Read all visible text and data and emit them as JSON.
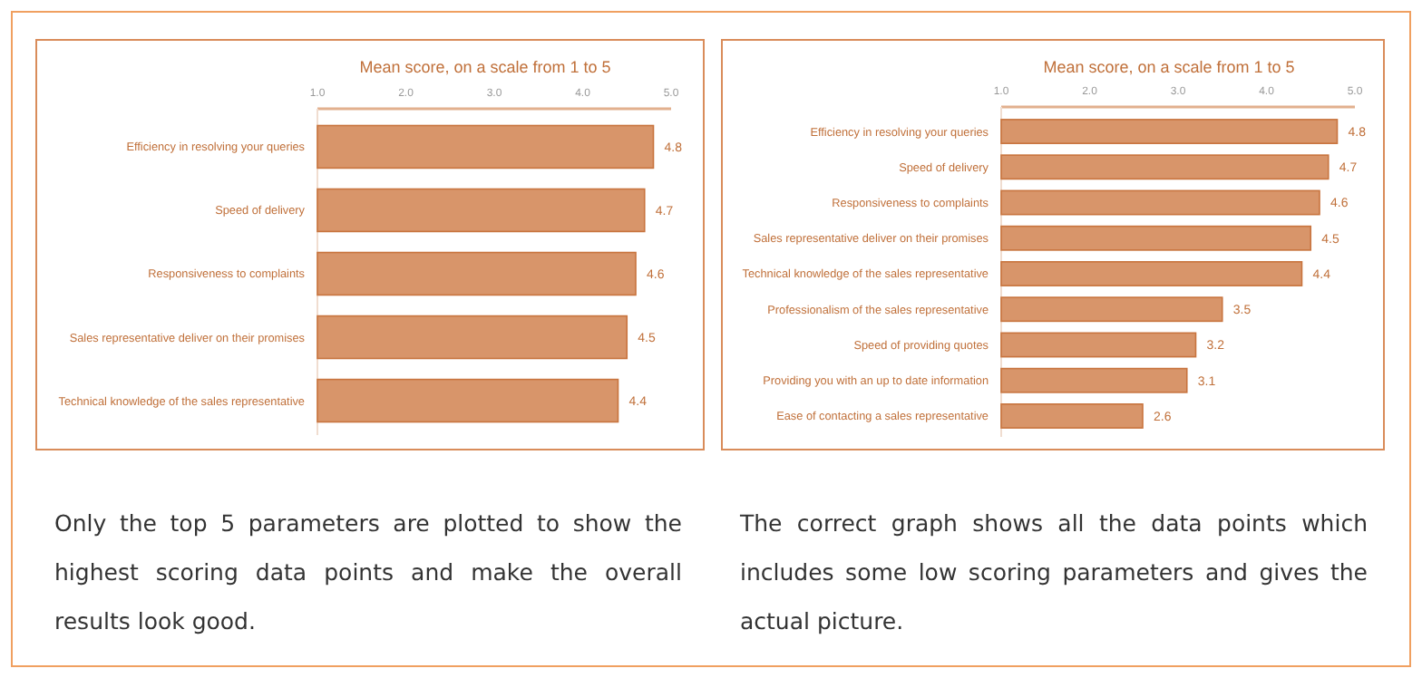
{
  "chart_data": [
    {
      "type": "bar",
      "orientation": "horizontal",
      "title": "Mean score, on a scale from 1 to 5",
      "categories": [
        "Efficiency in resolving your queries",
        "Speed of delivery",
        "Responsiveness to complaints",
        "Sales representative deliver on their promises",
        "Technical knowledge of the sales representative"
      ],
      "values": [
        4.8,
        4.7,
        4.6,
        4.5,
        4.4
      ],
      "color": "#d8956a",
      "xlim": [
        1,
        5
      ],
      "xticks": [
        {
          "value": 1,
          "label": "1.0"
        },
        {
          "value": 2,
          "label": "2.0"
        },
        {
          "value": 3,
          "label": "3.0"
        },
        {
          "value": 4,
          "label": "4.0"
        },
        {
          "value": 5,
          "label": "5.0"
        }
      ],
      "data_labels": true,
      "annotations": [
        "Only the top 5 parameters are plotted to show the highest scoring data points and make the overall results look good."
      ]
    },
    {
      "type": "bar",
      "orientation": "horizontal",
      "title": "Mean score, on a scale from 1 to 5",
      "categories": [
        "Efficiency in resolving your queries",
        "Speed of delivery",
        "Responsiveness to complaints",
        "Sales representative deliver on their promises",
        "Technical knowledge of the sales representative",
        "Professionalism of the sales representative",
        "Speed of providing quotes",
        "Providing  you with an up to date information",
        "Ease of contacting a sales representative"
      ],
      "values": [
        4.8,
        4.7,
        4.6,
        4.5,
        4.4,
        3.5,
        3.2,
        3.1,
        2.6
      ],
      "color": "#d8956a",
      "xlim": [
        1,
        5
      ],
      "xticks": [
        {
          "value": 1,
          "label": "1.0"
        },
        {
          "value": 2,
          "label": "2.0"
        },
        {
          "value": 3,
          "label": "3.0"
        },
        {
          "value": 4,
          "label": "4.0"
        },
        {
          "value": 5,
          "label": "5.0"
        }
      ],
      "data_labels": true,
      "annotations": [
        "The correct graph shows all the data points which includes some low scoring parameters and gives the actual picture."
      ]
    }
  ]
}
